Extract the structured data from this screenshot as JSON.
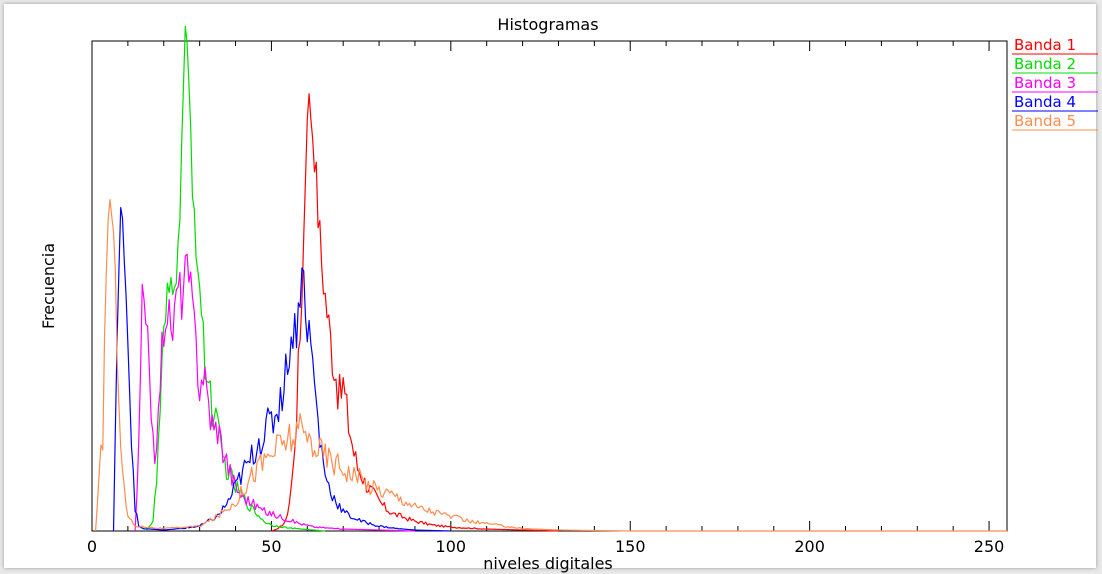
{
  "chart_data": {
    "type": "line",
    "title": "Histogramas",
    "xlabel": "niveles digitales",
    "ylabel": "Frecuencia",
    "xlim": [
      0,
      255
    ],
    "ylim": [
      0,
      1
    ],
    "xticks": [
      0,
      50,
      100,
      150,
      200,
      250
    ],
    "grid": false,
    "legend_placement": "top-right-outside",
    "series": [
      {
        "name": "Banda 1",
        "color": "#ff0000",
        "points": [
          [
            50,
            0
          ],
          [
            52,
            0.005
          ],
          [
            54,
            0.02
          ],
          [
            55,
            0.06
          ],
          [
            56,
            0.12
          ],
          [
            57,
            0.25
          ],
          [
            58,
            0.4
          ],
          [
            59,
            0.6
          ],
          [
            60,
            0.88
          ],
          [
            61,
            0.86
          ],
          [
            62,
            0.78
          ],
          [
            63,
            0.65
          ],
          [
            64,
            0.55
          ],
          [
            65,
            0.48
          ],
          [
            66,
            0.42
          ],
          [
            67,
            0.36
          ],
          [
            68,
            0.32
          ],
          [
            69,
            0.27
          ],
          [
            70,
            0.3
          ],
          [
            71,
            0.24
          ],
          [
            72,
            0.2
          ],
          [
            73,
            0.16
          ],
          [
            74,
            0.13
          ],
          [
            75,
            0.12
          ],
          [
            76,
            0.1
          ],
          [
            78,
            0.08
          ],
          [
            80,
            0.06
          ],
          [
            82,
            0.045
          ],
          [
            84,
            0.035
          ],
          [
            86,
            0.03
          ],
          [
            88,
            0.025
          ],
          [
            90,
            0.02
          ],
          [
            95,
            0.012
          ],
          [
            100,
            0.008
          ],
          [
            110,
            0.004
          ],
          [
            120,
            0.002
          ],
          [
            130,
            0
          ]
        ]
      },
      {
        "name": "Banda 2",
        "color": "#00dd00",
        "points": [
          [
            15,
            0
          ],
          [
            17,
            0.02
          ],
          [
            18,
            0.1
          ],
          [
            19,
            0.25
          ],
          [
            20,
            0.38
          ],
          [
            21,
            0.46
          ],
          [
            22,
            0.5
          ],
          [
            23,
            0.53
          ],
          [
            24,
            0.55
          ],
          [
            25,
            0.8
          ],
          [
            26,
            1.0
          ],
          [
            27,
            0.9
          ],
          [
            28,
            0.72
          ],
          [
            29,
            0.6
          ],
          [
            30,
            0.5
          ],
          [
            31,
            0.38
          ],
          [
            32,
            0.32
          ],
          [
            33,
            0.28
          ],
          [
            34,
            0.24
          ],
          [
            35,
            0.2
          ],
          [
            36,
            0.16
          ],
          [
            38,
            0.12
          ],
          [
            40,
            0.09
          ],
          [
            42,
            0.07
          ],
          [
            44,
            0.05
          ],
          [
            46,
            0.035
          ],
          [
            48,
            0.02
          ],
          [
            50,
            0.012
          ],
          [
            55,
            0.006
          ],
          [
            60,
            0.003
          ],
          [
            65,
            0
          ]
        ]
      },
      {
        "name": "Banda 3",
        "color": "#ff00ff",
        "points": [
          [
            12,
            0
          ],
          [
            13,
            0.15
          ],
          [
            14,
            0.48
          ],
          [
            15,
            0.4
          ],
          [
            16,
            0.34
          ],
          [
            17,
            0.2
          ],
          [
            18,
            0.14
          ],
          [
            19,
            0.32
          ],
          [
            20,
            0.42
          ],
          [
            21,
            0.46
          ],
          [
            22,
            0.4
          ],
          [
            23,
            0.44
          ],
          [
            24,
            0.5
          ],
          [
            25,
            0.48
          ],
          [
            26,
            0.53
          ],
          [
            27,
            0.52
          ],
          [
            28,
            0.45
          ],
          [
            29,
            0.38
          ],
          [
            30,
            0.3
          ],
          [
            31,
            0.33
          ],
          [
            32,
            0.28
          ],
          [
            33,
            0.24
          ],
          [
            34,
            0.2
          ],
          [
            35,
            0.22
          ],
          [
            36,
            0.18
          ],
          [
            37,
            0.16
          ],
          [
            38,
            0.13
          ],
          [
            39,
            0.11
          ],
          [
            40,
            0.09
          ],
          [
            42,
            0.07
          ],
          [
            44,
            0.06
          ],
          [
            46,
            0.05
          ],
          [
            48,
            0.04
          ],
          [
            50,
            0.035
          ],
          [
            54,
            0.025
          ],
          [
            58,
            0.015
          ],
          [
            62,
            0.008
          ],
          [
            70,
            0.004
          ],
          [
            80,
            0.002
          ],
          [
            90,
            0
          ]
        ]
      },
      {
        "name": "Banda 4",
        "color": "#0000ff",
        "points": [
          [
            6,
            0
          ],
          [
            7,
            0.4
          ],
          [
            8,
            0.62
          ],
          [
            9,
            0.6
          ],
          [
            10,
            0.4
          ],
          [
            11,
            0.2
          ],
          [
            12,
            0.05
          ],
          [
            13,
            0.01
          ],
          [
            14,
            0.005
          ],
          [
            20,
            0.002
          ],
          [
            25,
            0.005
          ],
          [
            30,
            0.01
          ],
          [
            35,
            0.03
          ],
          [
            38,
            0.06
          ],
          [
            40,
            0.09
          ],
          [
            42,
            0.12
          ],
          [
            44,
            0.14
          ],
          [
            46,
            0.18
          ],
          [
            48,
            0.2
          ],
          [
            50,
            0.22
          ],
          [
            52,
            0.26
          ],
          [
            54,
            0.32
          ],
          [
            55,
            0.38
          ],
          [
            56,
            0.4
          ],
          [
            57,
            0.42
          ],
          [
            58,
            0.5
          ],
          [
            59,
            0.52
          ],
          [
            60,
            0.42
          ],
          [
            61,
            0.38
          ],
          [
            62,
            0.3
          ],
          [
            63,
            0.22
          ],
          [
            64,
            0.16
          ],
          [
            65,
            0.12
          ],
          [
            66,
            0.09
          ],
          [
            68,
            0.06
          ],
          [
            70,
            0.04
          ],
          [
            72,
            0.03
          ],
          [
            75,
            0.02
          ],
          [
            80,
            0.01
          ],
          [
            85,
            0.005
          ],
          [
            90,
            0.002
          ],
          [
            100,
            0
          ]
        ]
      },
      {
        "name": "Banda 5",
        "color": "#ff8c50",
        "points": [
          [
            1,
            0
          ],
          [
            3,
            0.2
          ],
          [
            4,
            0.55
          ],
          [
            5,
            0.7
          ],
          [
            6,
            0.58
          ],
          [
            7,
            0.4
          ],
          [
            8,
            0.2
          ],
          [
            9,
            0.08
          ],
          [
            10,
            0.03
          ],
          [
            12,
            0.01
          ],
          [
            20,
            0.005
          ],
          [
            30,
            0.01
          ],
          [
            35,
            0.03
          ],
          [
            40,
            0.06
          ],
          [
            45,
            0.12
          ],
          [
            50,
            0.16
          ],
          [
            55,
            0.19
          ],
          [
            58,
            0.2
          ],
          [
            60,
            0.19
          ],
          [
            62,
            0.18
          ],
          [
            64,
            0.16
          ],
          [
            66,
            0.15
          ],
          [
            68,
            0.14
          ],
          [
            70,
            0.13
          ],
          [
            72,
            0.12
          ],
          [
            74,
            0.11
          ],
          [
            76,
            0.1
          ],
          [
            78,
            0.09
          ],
          [
            80,
            0.085
          ],
          [
            82,
            0.08
          ],
          [
            85,
            0.07
          ],
          [
            88,
            0.06
          ],
          [
            90,
            0.05
          ],
          [
            95,
            0.04
          ],
          [
            100,
            0.03
          ],
          [
            105,
            0.02
          ],
          [
            110,
            0.015
          ],
          [
            115,
            0.01
          ],
          [
            120,
            0.005
          ],
          [
            130,
            0.002
          ],
          [
            140,
            0.001
          ],
          [
            150,
            0
          ],
          [
            255,
            0
          ]
        ]
      }
    ]
  }
}
